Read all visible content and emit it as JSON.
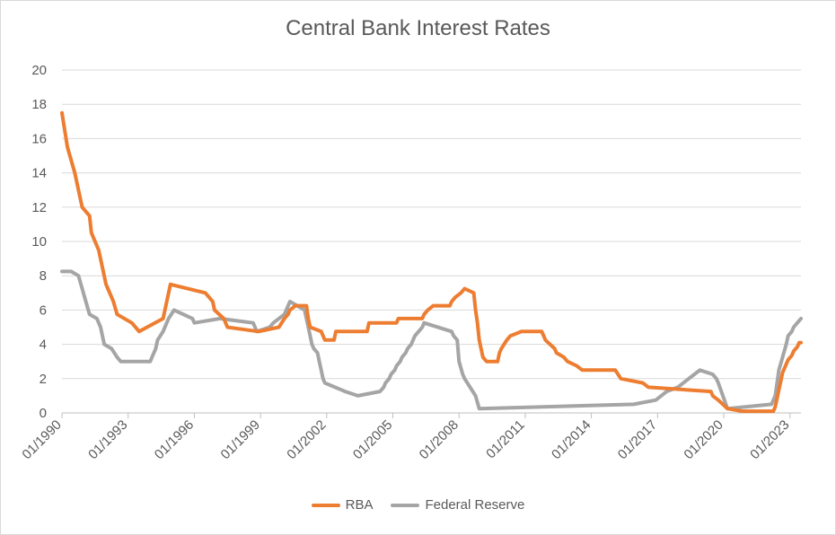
{
  "chart_data": {
    "type": "line",
    "title": "Central Bank Interest Rates",
    "xlabel": "",
    "ylabel": "",
    "ylim": [
      0,
      20
    ],
    "yticks": [
      "0",
      "2",
      "4",
      "6",
      "8",
      "10",
      "12",
      "14",
      "16",
      "18",
      "20"
    ],
    "xlim": [
      "01/1990",
      "07/2023"
    ],
    "xticks": [
      "01/1990",
      "01/1993",
      "01/1996",
      "01/1999",
      "01/2002",
      "01/2005",
      "01/2008",
      "01/2011",
      "01/2014",
      "01/2017",
      "01/2020",
      "01/2023"
    ],
    "grid": true,
    "legend_position": "bottom",
    "series": [
      {
        "name": "RBA",
        "color": "#ED7D31",
        "points": [
          [
            "1990-01",
            17.5
          ],
          [
            "1990-04",
            15.5
          ],
          [
            "1990-08",
            14.0
          ],
          [
            "1990-12",
            12.0
          ],
          [
            "1991-04",
            11.5
          ],
          [
            "1991-05",
            10.5
          ],
          [
            "1991-09",
            9.5
          ],
          [
            "1992-01",
            7.5
          ],
          [
            "1992-05",
            6.5
          ],
          [
            "1992-07",
            5.75
          ],
          [
            "1993-03",
            5.25
          ],
          [
            "1993-07",
            4.75
          ],
          [
            "1994-08",
            5.5
          ],
          [
            "1994-10",
            6.5
          ],
          [
            "1994-12",
            7.5
          ],
          [
            "1996-07",
            7.0
          ],
          [
            "1996-11",
            6.5
          ],
          [
            "1996-12",
            6.0
          ],
          [
            "1997-05",
            5.5
          ],
          [
            "1997-07",
            5.0
          ],
          [
            "1998-12",
            4.75
          ],
          [
            "1999-11",
            5.0
          ],
          [
            "2000-02",
            5.5
          ],
          [
            "2000-04",
            5.75
          ],
          [
            "2000-05",
            6.0
          ],
          [
            "2000-08",
            6.25
          ],
          [
            "2001-02",
            6.25
          ],
          [
            "2001-03",
            5.5
          ],
          [
            "2001-04",
            5.0
          ],
          [
            "2001-10",
            4.75
          ],
          [
            "2001-12",
            4.25
          ],
          [
            "2002-05",
            4.25
          ],
          [
            "2002-06",
            4.75
          ],
          [
            "2003-11",
            4.75
          ],
          [
            "2003-12",
            5.25
          ],
          [
            "2005-03",
            5.25
          ],
          [
            "2005-04",
            5.5
          ],
          [
            "2006-05",
            5.5
          ],
          [
            "2006-06",
            5.75
          ],
          [
            "2006-08",
            6.0
          ],
          [
            "2006-11",
            6.25
          ],
          [
            "2007-08",
            6.25
          ],
          [
            "2007-09",
            6.5
          ],
          [
            "2007-11",
            6.75
          ],
          [
            "2008-02",
            7.0
          ],
          [
            "2008-04",
            7.25
          ],
          [
            "2008-09",
            7.0
          ],
          [
            "2008-10",
            6.0
          ],
          [
            "2008-11",
            5.25
          ],
          [
            "2008-12",
            4.25
          ],
          [
            "2009-02",
            3.25
          ],
          [
            "2009-04",
            3.0
          ],
          [
            "2009-10",
            3.0
          ],
          [
            "2009-11",
            3.5
          ],
          [
            "2009-12",
            3.75
          ],
          [
            "2010-03",
            4.25
          ],
          [
            "2010-05",
            4.5
          ],
          [
            "2010-11",
            4.75
          ],
          [
            "2011-10",
            4.75
          ],
          [
            "2011-11",
            4.5
          ],
          [
            "2011-12",
            4.25
          ],
          [
            "2012-05",
            3.75
          ],
          [
            "2012-06",
            3.5
          ],
          [
            "2012-10",
            3.25
          ],
          [
            "2012-12",
            3.0
          ],
          [
            "2013-05",
            2.75
          ],
          [
            "2013-08",
            2.5
          ],
          [
            "2015-02",
            2.5
          ],
          [
            "2015-05",
            2.0
          ],
          [
            "2016-05",
            1.75
          ],
          [
            "2016-08",
            1.5
          ],
          [
            "2019-06",
            1.25
          ],
          [
            "2019-07",
            1.0
          ],
          [
            "2019-10",
            0.75
          ],
          [
            "2020-03",
            0.25
          ],
          [
            "2020-11",
            0.1
          ],
          [
            "2022-04",
            0.1
          ],
          [
            "2022-05",
            0.35
          ],
          [
            "2022-06",
            0.85
          ],
          [
            "2022-07",
            1.35
          ],
          [
            "2022-08",
            1.85
          ],
          [
            "2022-09",
            2.35
          ],
          [
            "2022-10",
            2.6
          ],
          [
            "2022-11",
            2.85
          ],
          [
            "2022-12",
            3.1
          ],
          [
            "2023-02",
            3.35
          ],
          [
            "2023-03",
            3.6
          ],
          [
            "2023-05",
            3.85
          ],
          [
            "2023-06",
            4.1
          ],
          [
            "2023-07",
            4.1
          ]
        ]
      },
      {
        "name": "Federal Reserve",
        "color": "#A5A5A5",
        "points": [
          [
            "1990-01",
            8.25
          ],
          [
            "1990-06",
            8.25
          ],
          [
            "1990-10",
            8.0
          ],
          [
            "1990-12",
            7.25
          ],
          [
            "1991-02",
            6.5
          ],
          [
            "1991-04",
            5.75
          ],
          [
            "1991-08",
            5.5
          ],
          [
            "1991-10",
            5.0
          ],
          [
            "1991-12",
            4.0
          ],
          [
            "1992-04",
            3.75
          ],
          [
            "1992-07",
            3.25
          ],
          [
            "1992-09",
            3.0
          ],
          [
            "1994-01",
            3.0
          ],
          [
            "1994-02",
            3.25
          ],
          [
            "1994-04",
            3.75
          ],
          [
            "1994-05",
            4.25
          ],
          [
            "1994-08",
            4.75
          ],
          [
            "1994-11",
            5.5
          ],
          [
            "1995-02",
            6.0
          ],
          [
            "1995-07",
            5.75
          ],
          [
            "1995-12",
            5.5
          ],
          [
            "1996-01",
            5.25
          ],
          [
            "1997-03",
            5.5
          ],
          [
            "1998-09",
            5.25
          ],
          [
            "1998-10",
            5.0
          ],
          [
            "1998-11",
            4.75
          ],
          [
            "1999-06",
            5.0
          ],
          [
            "1999-08",
            5.25
          ],
          [
            "1999-11",
            5.5
          ],
          [
            "2000-02",
            5.75
          ],
          [
            "2000-03",
            6.0
          ],
          [
            "2000-05",
            6.5
          ],
          [
            "2001-01",
            6.0
          ],
          [
            "2001-02",
            5.5
          ],
          [
            "2001-03",
            5.0
          ],
          [
            "2001-04",
            4.5
          ],
          [
            "2001-05",
            4.0
          ],
          [
            "2001-06",
            3.75
          ],
          [
            "2001-08",
            3.5
          ],
          [
            "2001-09",
            3.0
          ],
          [
            "2001-10",
            2.5
          ],
          [
            "2001-11",
            2.0
          ],
          [
            "2001-12",
            1.75
          ],
          [
            "2002-11",
            1.25
          ],
          [
            "2003-06",
            1.0
          ],
          [
            "2004-06",
            1.25
          ],
          [
            "2004-08",
            1.5
          ],
          [
            "2004-09",
            1.75
          ],
          [
            "2004-11",
            2.0
          ],
          [
            "2004-12",
            2.25
          ],
          [
            "2005-02",
            2.5
          ],
          [
            "2005-03",
            2.75
          ],
          [
            "2005-05",
            3.0
          ],
          [
            "2005-06",
            3.25
          ],
          [
            "2005-08",
            3.5
          ],
          [
            "2005-09",
            3.75
          ],
          [
            "2005-11",
            4.0
          ],
          [
            "2005-12",
            4.25
          ],
          [
            "2006-01",
            4.5
          ],
          [
            "2006-03",
            4.75
          ],
          [
            "2006-05",
            5.0
          ],
          [
            "2006-06",
            5.25
          ],
          [
            "2007-09",
            4.75
          ],
          [
            "2007-10",
            4.5
          ],
          [
            "2007-12",
            4.25
          ],
          [
            "2008-01",
            3.0
          ],
          [
            "2008-03",
            2.25
          ],
          [
            "2008-04",
            2.0
          ],
          [
            "2008-10",
            1.0
          ],
          [
            "2008-12",
            0.25
          ],
          [
            "2015-12",
            0.5
          ],
          [
            "2016-12",
            0.75
          ],
          [
            "2017-03",
            1.0
          ],
          [
            "2017-06",
            1.25
          ],
          [
            "2017-12",
            1.5
          ],
          [
            "2018-03",
            1.75
          ],
          [
            "2018-06",
            2.0
          ],
          [
            "2018-09",
            2.25
          ],
          [
            "2018-12",
            2.5
          ],
          [
            "2019-07",
            2.25
          ],
          [
            "2019-09",
            2.0
          ],
          [
            "2019-10",
            1.75
          ],
          [
            "2020-03",
            0.25
          ],
          [
            "2022-03",
            0.5
          ],
          [
            "2022-05",
            1.0
          ],
          [
            "2022-06",
            1.75
          ],
          [
            "2022-07",
            2.5
          ],
          [
            "2022-09",
            3.25
          ],
          [
            "2022-11",
            4.0
          ],
          [
            "2022-12",
            4.5
          ],
          [
            "2023-02",
            4.75
          ],
          [
            "2023-03",
            5.0
          ],
          [
            "2023-05",
            5.25
          ],
          [
            "2023-07",
            5.5
          ]
        ]
      }
    ]
  }
}
